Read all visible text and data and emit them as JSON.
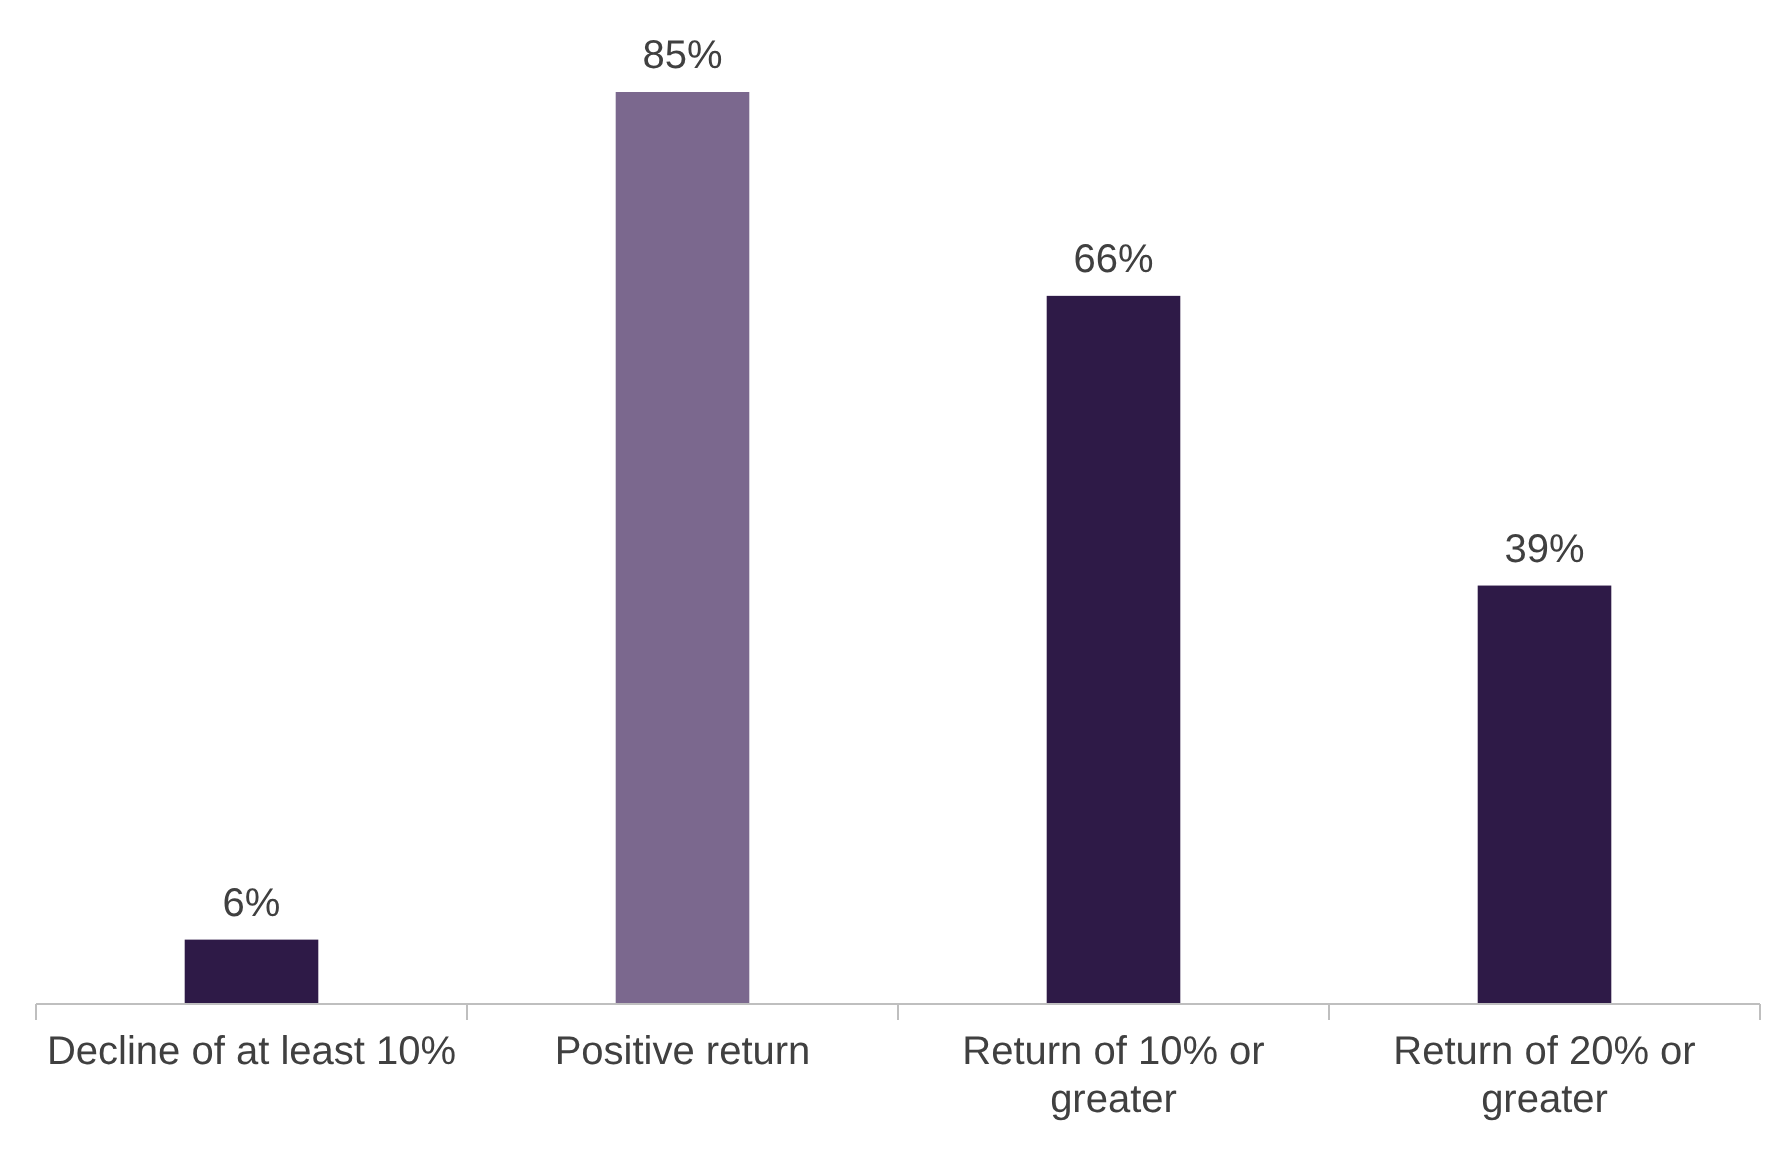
{
  "chart_data": {
    "type": "bar",
    "categories": [
      "Decline of at least 10%",
      "Positive return",
      "Return of 10% or greater",
      "Return of 20% or greater"
    ],
    "values": [
      6,
      85,
      66,
      39
    ],
    "colors": [
      "#2e1a47",
      "#7b688e",
      "#2e1a47",
      "#2e1a47"
    ],
    "value_labels": [
      "6%",
      "85%",
      "66%",
      "39%"
    ]
  }
}
